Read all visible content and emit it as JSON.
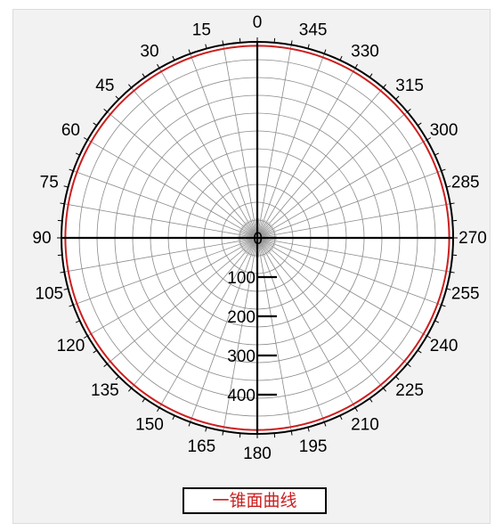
{
  "chart_data": {
    "type": "polar-line",
    "angle_labels": [
      "0",
      "15",
      "30",
      "45",
      "60",
      "75",
      "90",
      "105",
      "120",
      "135",
      "150",
      "165",
      "180",
      "195",
      "210",
      "225",
      "240",
      "255",
      "270",
      "285",
      "300",
      "315",
      "330",
      "345"
    ],
    "angles_deg": [
      0,
      15,
      30,
      45,
      60,
      75,
      90,
      105,
      120,
      135,
      150,
      165,
      180,
      195,
      210,
      225,
      240,
      255,
      270,
      285,
      300,
      315,
      330,
      345
    ],
    "direction": "counterclockwise",
    "zero_at": "top",
    "radial_tick_labels": [
      "0",
      "100",
      "200",
      "300",
      "400"
    ],
    "radial_ticks": [
      0,
      100,
      200,
      300,
      400
    ],
    "rlim": [
      0,
      500
    ],
    "grid": true,
    "series": [
      {
        "name": "一锥面曲线",
        "color": "#cc1f1f",
        "r": [
          490,
          490,
          490,
          490,
          490,
          490,
          490,
          490,
          490,
          490,
          490,
          490,
          490,
          490,
          490,
          490,
          490,
          490,
          490,
          490,
          490,
          490,
          490,
          490
        ]
      }
    ],
    "legend_position": "bottom-center"
  }
}
